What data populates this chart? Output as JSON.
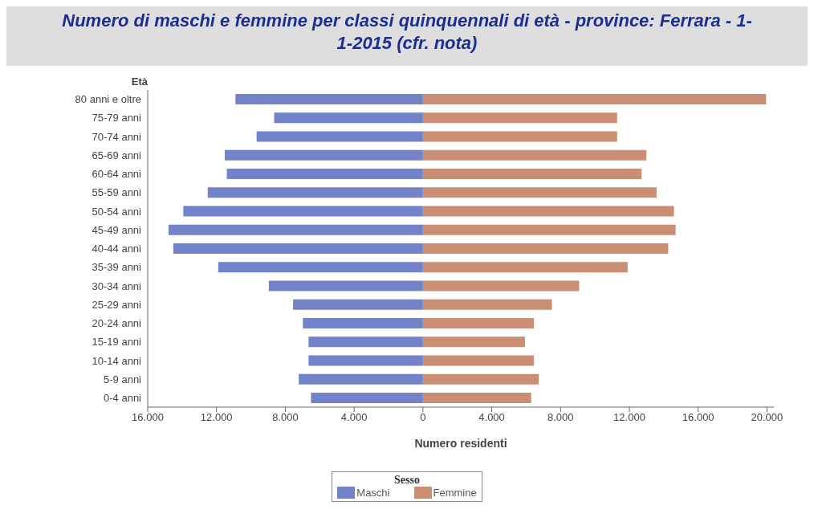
{
  "chart_data": {
    "type": "bar",
    "orientation": "horizontal",
    "stacked": true,
    "title": "Numero di maschi e femmine per classi quinquennali di età - province: Ferrara - 1-1-2015 (cfr. nota)",
    "xlabel": "Numero residenti",
    "ylabel": "Età",
    "legend_title": "Sesso",
    "legend": "bottom",
    "grid": false,
    "categories": [
      "80 anni e oltre",
      "75-79 anni",
      "70-74 anni",
      "65-69 anni",
      "60-64 anni",
      "55-59 anni",
      "50-54 anni",
      "45-49 anni",
      "40-44 anni",
      "35-39 anni",
      "30-34 anni",
      "25-29 anni",
      "20-24 anni",
      "15-19 anni",
      "10-14 anni",
      "5-9 anni",
      "0-4 anni"
    ],
    "series": [
      {
        "name": "Maschi",
        "color": "#7383c9",
        "values": [
          -10900,
          -8650,
          -9670,
          -11520,
          -11400,
          -12510,
          -13930,
          -14790,
          -14510,
          -11900,
          -8960,
          -7550,
          -6980,
          -6650,
          -6650,
          -7220,
          -6510
        ]
      },
      {
        "name": "Femmine",
        "color": "#c98e74",
        "values": [
          19950,
          11290,
          11290,
          12990,
          12710,
          13580,
          14590,
          14690,
          14260,
          11900,
          9080,
          7500,
          6450,
          5930,
          6450,
          6730,
          6290
        ]
      }
    ],
    "xlim": [
      -16000,
      20400
    ],
    "xticks": [
      {
        "value": -16000,
        "label": "16.000"
      },
      {
        "value": -12000,
        "label": "12.000"
      },
      {
        "value": -8000,
        "label": "8.000"
      },
      {
        "value": -4000,
        "label": "4.000"
      },
      0,
      {
        "value": 4000,
        "label": "4.000"
      },
      {
        "value": 8000,
        "label": "8.000"
      },
      {
        "value": 12000,
        "label": "12.000"
      },
      {
        "value": 16000,
        "label": "16.000"
      },
      {
        "value": 20000,
        "label": "20.000"
      }
    ]
  }
}
